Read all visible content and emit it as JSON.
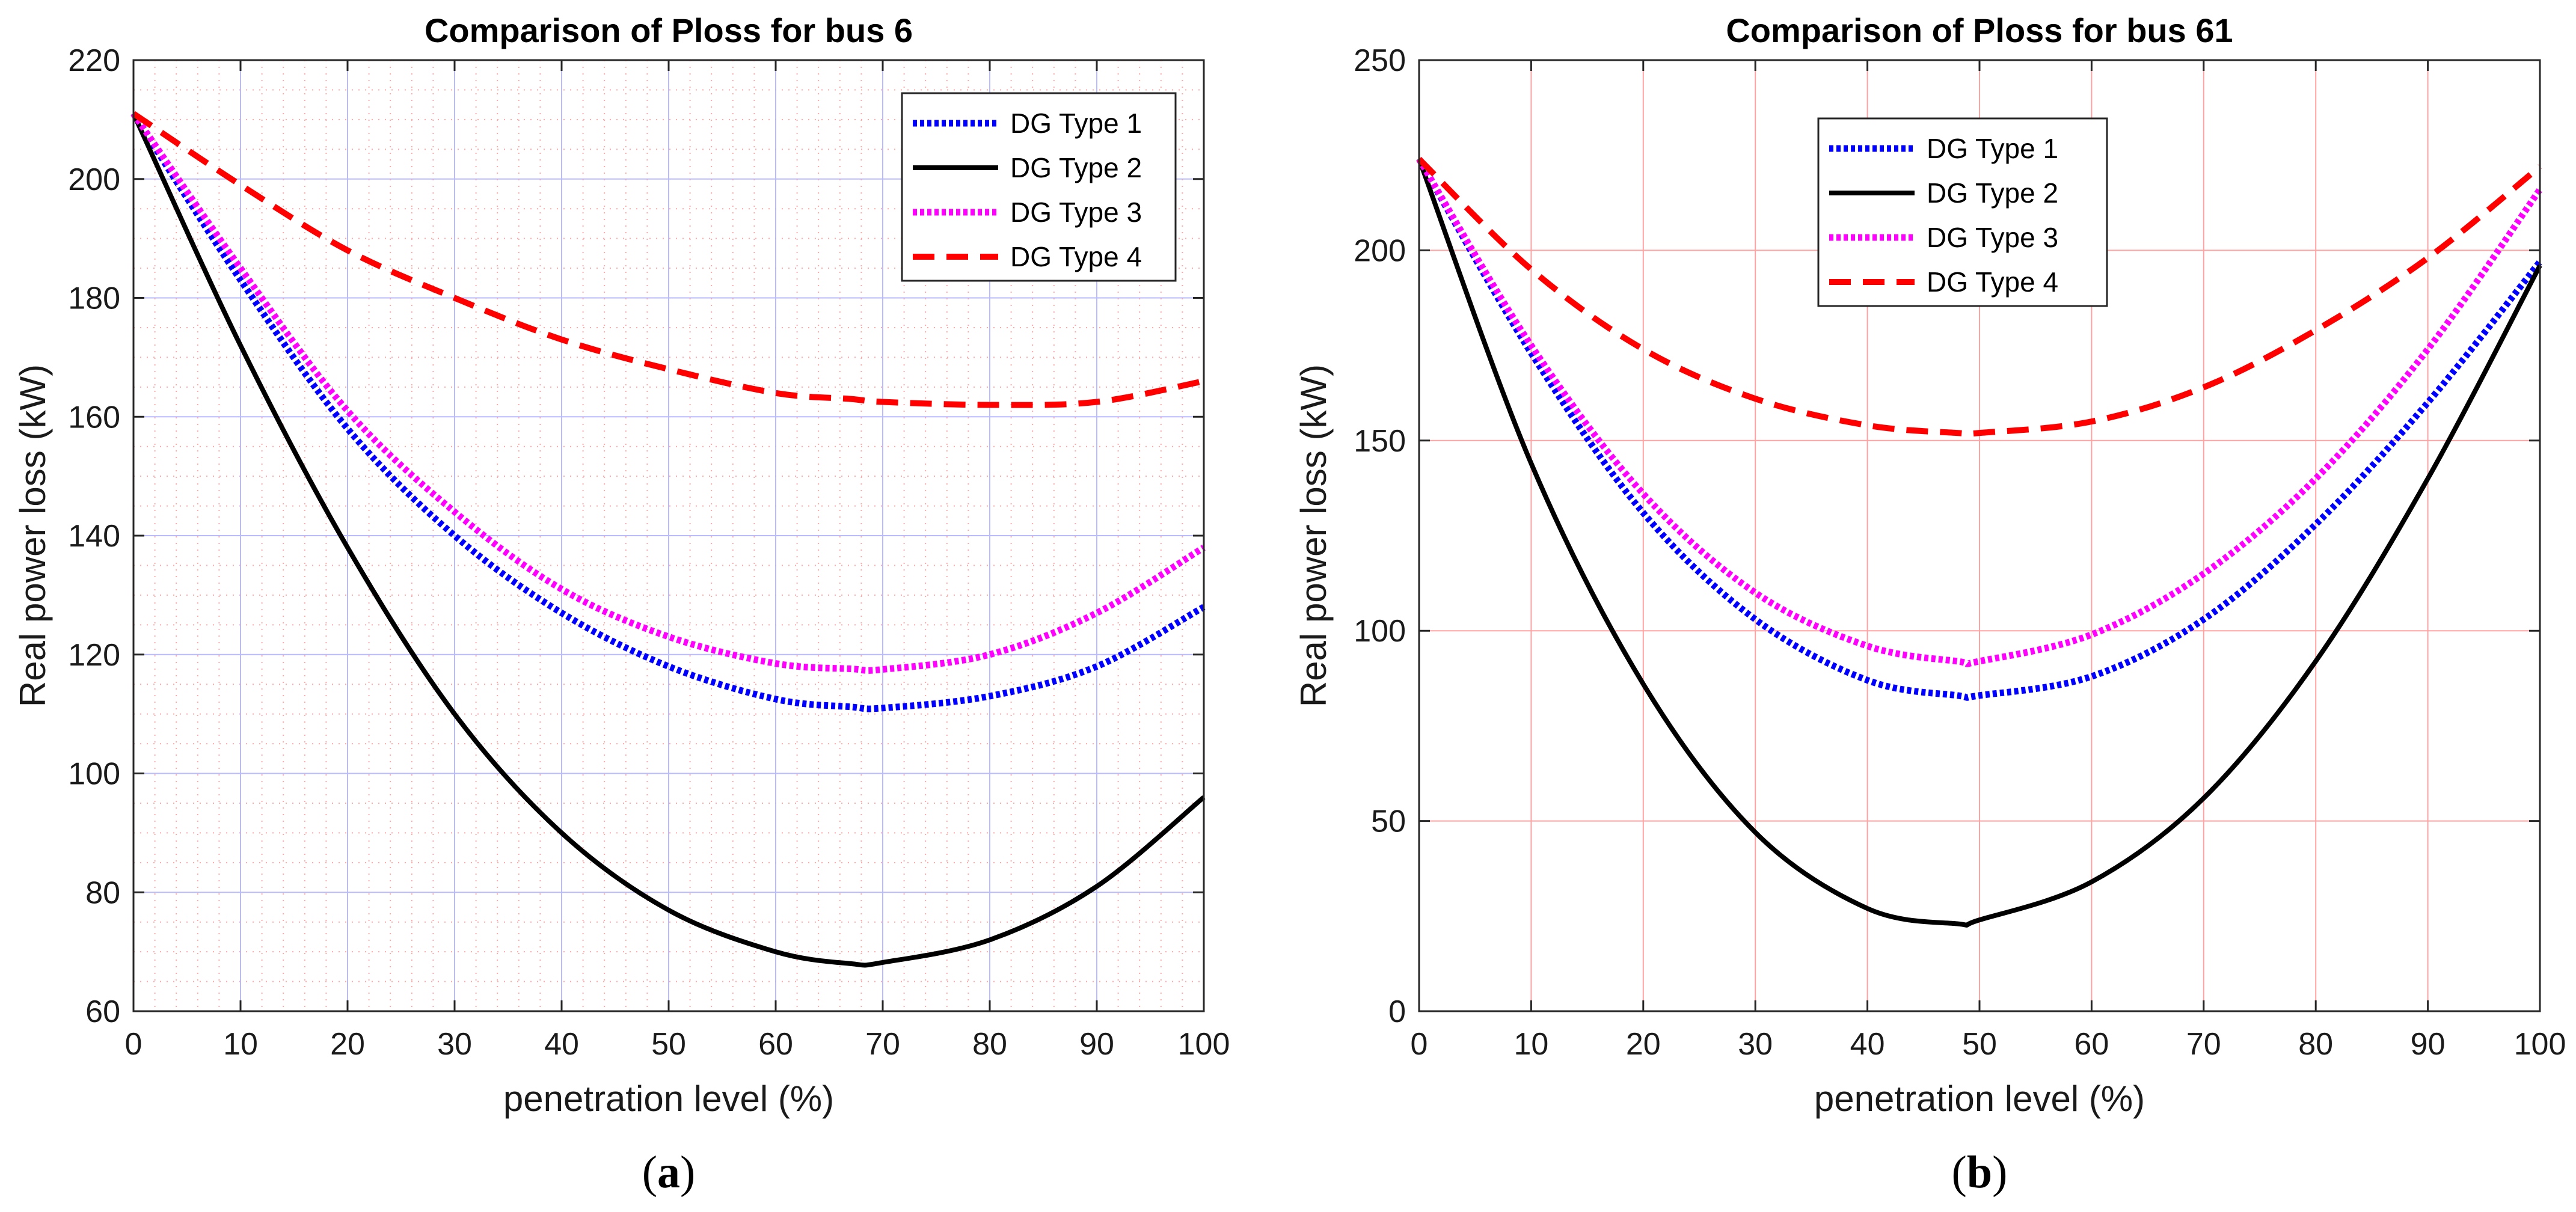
{
  "chart_data": [
    {
      "type": "line",
      "title": "Comparison of Ploss for bus 6",
      "xlabel": "penetration level (%)",
      "ylabel": "Real power loss (kW)",
      "xlim": [
        0,
        100
      ],
      "ylim": [
        60,
        220
      ],
      "xticks": [
        "0",
        "10",
        "20",
        "30",
        "40",
        "50",
        "60",
        "70",
        "80",
        "90",
        "100"
      ],
      "yticks": [
        "60",
        "80",
        "100",
        "120",
        "140",
        "160",
        "180",
        "200",
        "220"
      ],
      "grid": true,
      "minor_grid": true,
      "grid_color": "#b3b3ff",
      "minor_grid_color": "#ff9999",
      "legend_position": "top-right",
      "caption": "(a)",
      "x": [
        0,
        10,
        20,
        30,
        40,
        50,
        60,
        67,
        70,
        80,
        90,
        100
      ],
      "series": [
        {
          "name": "DG Type 1",
          "color": "#0000ff",
          "style": "dotted",
          "values": [
            211,
            183,
            158,
            140,
            127,
            118,
            112.5,
            111.2,
            111,
            113,
            118,
            128
          ]
        },
        {
          "name": "DG Type 2",
          "color": "#000000",
          "style": "solid",
          "values": [
            211,
            172,
            138,
            110,
            90,
            77,
            70,
            68,
            68.2,
            72,
            81,
            96
          ]
        },
        {
          "name": "DG Type 3",
          "color": "#ff00ff",
          "style": "dotted",
          "values": [
            211,
            185,
            161,
            144,
            131,
            123,
            118.5,
            117.6,
            117.5,
            120,
            127,
            138
          ]
        },
        {
          "name": "DG Type 4",
          "color": "#ff0000",
          "style": "dashed",
          "values": [
            211,
            199,
            188,
            180,
            173,
            168,
            164,
            163,
            162.5,
            162,
            162.5,
            166
          ]
        }
      ]
    },
    {
      "type": "line",
      "title": "Comparison of Ploss for bus 61",
      "xlabel": "penetration level (%)",
      "ylabel": "Real power loss (kW)",
      "xlim": [
        0,
        100
      ],
      "ylim": [
        0,
        250
      ],
      "xticks": [
        "0",
        "10",
        "20",
        "30",
        "40",
        "50",
        "60",
        "70",
        "80",
        "90",
        "100"
      ],
      "yticks": [
        "0",
        "50",
        "100",
        "150",
        "200",
        "250"
      ],
      "grid": true,
      "minor_grid": false,
      "grid_color": "#ff9999",
      "legend_position": "top-center",
      "caption": "(b)",
      "x": [
        0,
        10,
        20,
        30,
        40,
        48,
        50,
        60,
        70,
        80,
        90,
        100
      ],
      "series": [
        {
          "name": "DG Type 1",
          "color": "#0000ff",
          "style": "dotted",
          "values": [
            224,
            173,
            131,
            103,
            87,
            83,
            83,
            88,
            103,
            128,
            160,
            197
          ]
        },
        {
          "name": "DG Type 2",
          "color": "#000000",
          "style": "solid",
          "values": [
            224,
            144,
            86,
            47,
            27,
            23,
            24,
            34,
            56,
            92,
            140,
            196
          ]
        },
        {
          "name": "DG Type 3",
          "color": "#ff00ff",
          "style": "dotted",
          "values": [
            224,
            175,
            136,
            110,
            96,
            92,
            92,
            99,
            115,
            140,
            174,
            216
          ]
        },
        {
          "name": "DG Type 4",
          "color": "#ff0000",
          "style": "dashed",
          "values": [
            224,
            195,
            174,
            161,
            154,
            152,
            152,
            155,
            164,
            179,
            198,
            222
          ]
        }
      ]
    }
  ]
}
